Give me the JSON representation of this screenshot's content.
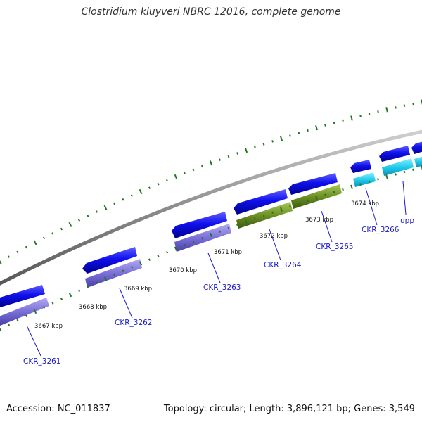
{
  "title": "Clostridium kluyveri NBRC 12016, complete genome",
  "accession_text": "Accession: NC_011837",
  "summary_text": "Topology: circular; Length: 3,896,121 bp; Genes: 3,549",
  "ticks": [
    {
      "label": "3667 kbp"
    },
    {
      "label": "3668 kbp"
    },
    {
      "label": "3669 kbp"
    },
    {
      "label": "3670 kbp"
    },
    {
      "label": "3671 kbp"
    },
    {
      "label": "3672 kbp"
    },
    {
      "label": "3673 kbp"
    },
    {
      "label": "3674 kbp"
    }
  ],
  "genes": [
    {
      "label": "CKR_3261"
    },
    {
      "label": "CKR_3262"
    },
    {
      "label": "CKR_3263"
    },
    {
      "label": "CKR_3264"
    },
    {
      "label": "CKR_3265"
    },
    {
      "label": "CKR_3266"
    },
    {
      "label": "upp"
    }
  ],
  "colors": {
    "backbone": "#8c8c8c",
    "gene_blue": "#1010ee",
    "cds_purple": "#7b6fd9",
    "cds_olive": "#6e8f24",
    "cds_cyan": "#22ccee",
    "tick_green": "#1f7a1f",
    "label_blue": "#1a1acc"
  }
}
